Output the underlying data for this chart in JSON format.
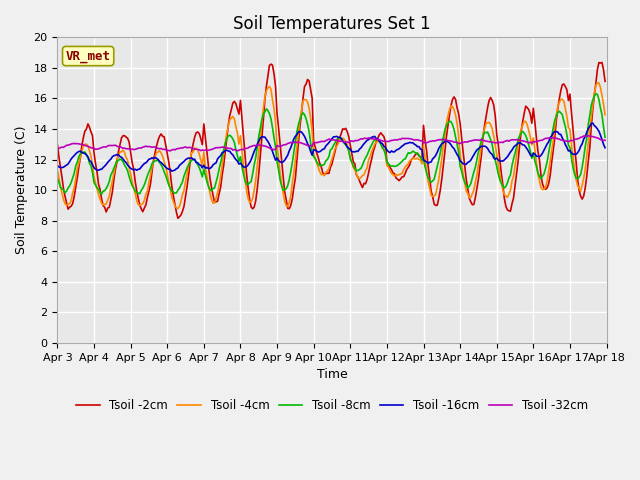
{
  "title": "Soil Temperatures Set 1",
  "xlabel": "Time",
  "ylabel": "Soil Temperature (C)",
  "annotation": "VR_met",
  "ylim": [
    0,
    20
  ],
  "yticks": [
    0,
    2,
    4,
    6,
    8,
    10,
    12,
    14,
    16,
    18,
    20
  ],
  "x_labels": [
    "Apr 3",
    "Apr 4",
    "Apr 5",
    "Apr 6",
    "Apr 7",
    "Apr 8",
    "Apr 9",
    "Apr 10",
    "Apr 11",
    "Apr 12",
    "Apr 13",
    "Apr 14",
    "Apr 15",
    "Apr 16",
    "Apr 17",
    "Apr 18"
  ],
  "series_colors": [
    "#cc0000",
    "#ff8800",
    "#00bb00",
    "#0000cc",
    "#bb00bb"
  ],
  "series_labels": [
    "Tsoil -2cm",
    "Tsoil -4cm",
    "Tsoil -8cm",
    "Tsoil -16cm",
    "Tsoil -32cm"
  ],
  "fig_bg": "#f0f0f0",
  "ax_bg": "#e8e8e8",
  "grid_color": "#ffffff",
  "title_fontsize": 12,
  "label_fontsize": 9,
  "tick_fontsize": 8,
  "line_width": 1.2
}
